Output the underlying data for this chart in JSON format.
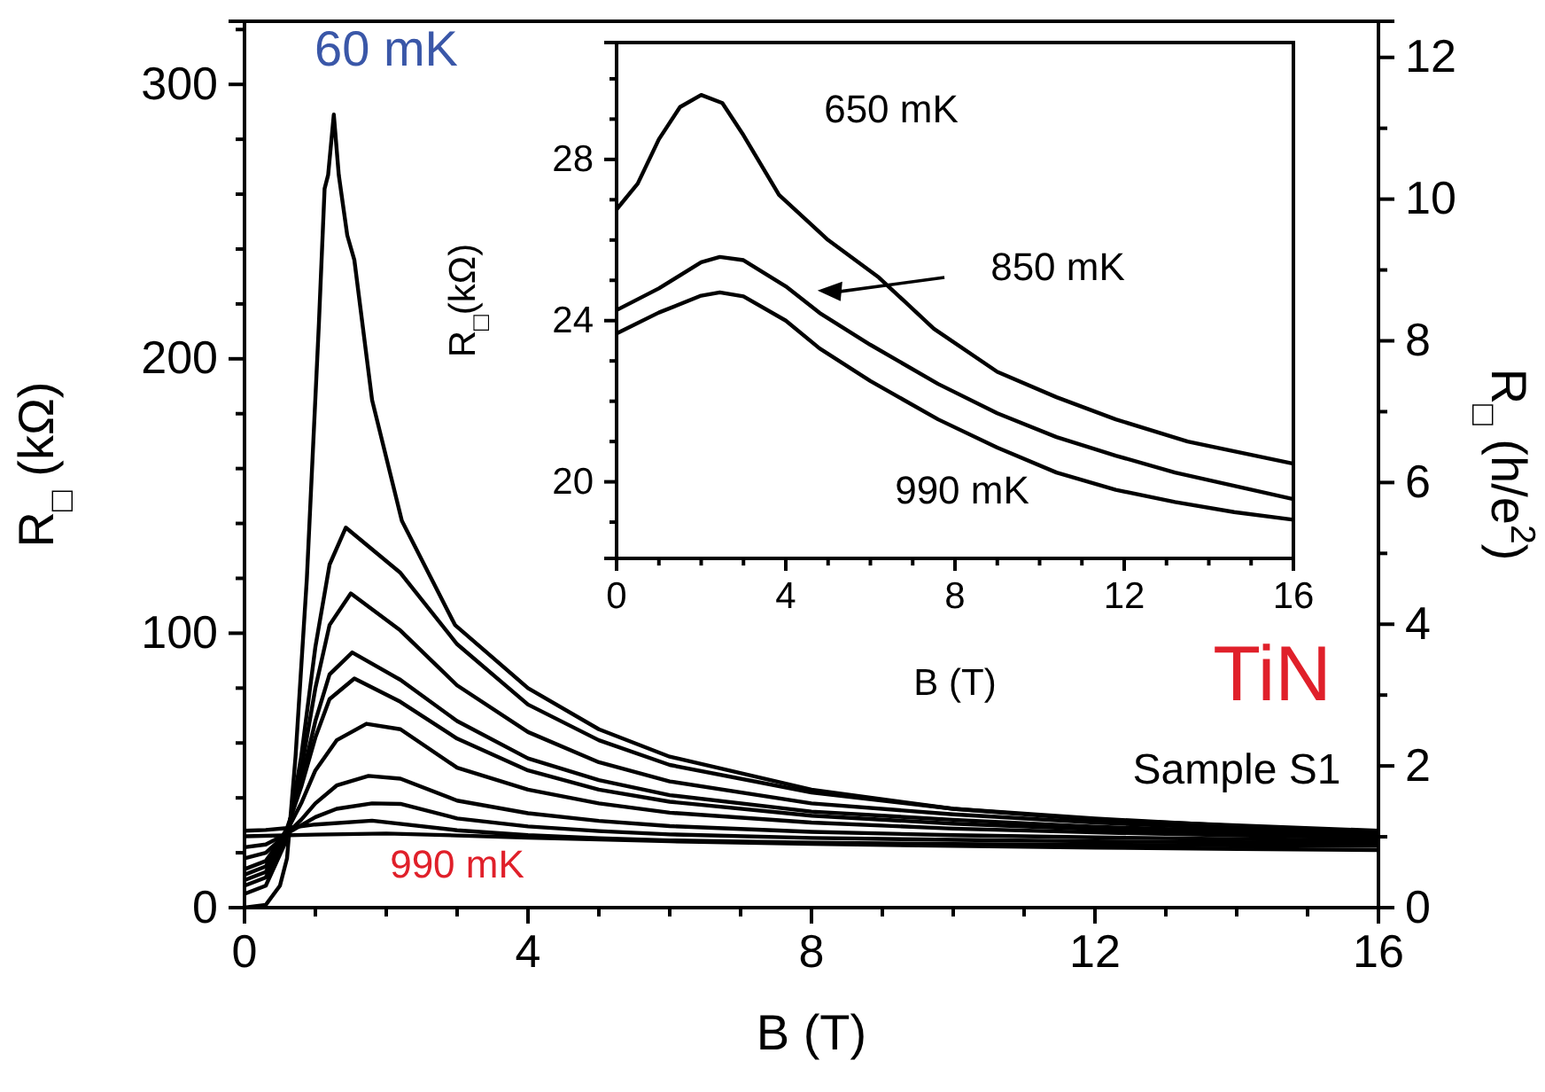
{
  "chart_data": [
    {
      "type": "line",
      "xlabel": "B (T)",
      "ylabel": "R$_{□}$ (kΩ)",
      "y2label": "R$_{□}$ (h/e$^{2}$)",
      "xlim": [
        0,
        16
      ],
      "ylim": [
        0,
        323
      ],
      "y2lim": [
        0,
        12.51
      ],
      "xticks": [
        0,
        {
          "value": 1,
          "label": null
        },
        {
          "value": 2,
          "label": null
        },
        {
          "value": 3,
          "label": null
        },
        4,
        {
          "value": 5,
          "label": null
        },
        {
          "value": 6,
          "label": null
        },
        {
          "value": 7,
          "label": null
        },
        8,
        {
          "value": 9,
          "label": null
        },
        {
          "value": 10,
          "label": null
        },
        {
          "value": 11,
          "label": null
        },
        12,
        {
          "value": 13,
          "label": null
        },
        {
          "value": 14,
          "label": null
        },
        {
          "value": 15,
          "label": null
        },
        16
      ],
      "yticks": [
        0,
        {
          "value": 20,
          "label": null
        },
        {
          "value": 40,
          "label": null
        },
        {
          "value": 60,
          "label": null
        },
        {
          "value": 80,
          "label": null
        },
        100,
        {
          "value": 120,
          "label": null
        },
        {
          "value": 140,
          "label": null
        },
        {
          "value": 160,
          "label": null
        },
        {
          "value": 180,
          "label": null
        },
        200,
        {
          "value": 220,
          "label": null
        },
        {
          "value": 240,
          "label": null
        },
        {
          "value": 260,
          "label": null
        },
        {
          "value": 280,
          "label": null
        },
        300,
        {
          "value": 320,
          "label": null
        }
      ],
      "y2ticks": [
        0,
        {
          "value": 1,
          "label": null
        },
        2,
        {
          "value": 3,
          "label": null
        },
        4,
        {
          "value": 5,
          "label": null
        },
        6,
        {
          "value": 7,
          "label": null
        },
        8,
        {
          "value": 9,
          "label": null
        },
        10,
        {
          "value": 11,
          "label": null
        },
        12
      ],
      "annotations": [
        "60 mK",
        "990 mK",
        "TiN",
        "Sample S1"
      ],
      "series": [
        {
          "color": "#000000",
          "x": [
            0,
            0.3,
            0.5,
            0.6,
            0.72,
            0.88,
            1.05,
            1.13,
            1.18,
            1.26,
            1.33,
            1.45,
            1.55,
            1.8,
            2.22,
            2.97,
            4,
            5,
            6,
            8,
            10,
            12,
            14,
            16
          ],
          "values": [
            0,
            1,
            8,
            18,
            55,
            120,
            213,
            262,
            267,
            289,
            267,
            245,
            236,
            185,
            141,
            103,
            80,
            65,
            55,
            43,
            36,
            32,
            30,
            28
          ]
        },
        {
          "color": "#000000",
          "x": [
            0,
            0.3,
            0.6,
            0.8,
            1.0,
            1.2,
            1.43,
            2.2,
            3,
            4,
            5,
            6,
            8,
            10,
            12,
            14,
            16
          ],
          "values": [
            5,
            8,
            25,
            55,
            95,
            125,
            138.5,
            122,
            96,
            74,
            61,
            52,
            42,
            36,
            32.5,
            29.7,
            27.5
          ]
        },
        {
          "color": "#000000",
          "x": [
            0,
            0.3,
            0.6,
            0.8,
            1.0,
            1.2,
            1.5,
            2.2,
            3,
            4,
            5,
            6,
            8,
            10,
            12,
            14,
            16
          ],
          "values": [
            8,
            11,
            27,
            50,
            80,
            103,
            114.5,
            101,
            81,
            64,
            53,
            46,
            38,
            34,
            31,
            28.8,
            27
          ]
        },
        {
          "color": "#000000",
          "x": [
            0,
            0.3,
            0.6,
            0.8,
            1.0,
            1.2,
            1.52,
            2.2,
            3,
            4,
            5,
            6,
            8,
            10,
            12,
            14,
            16
          ],
          "values": [
            10,
            13,
            28,
            46,
            68,
            85,
            93,
            83,
            68,
            54.4,
            46.5,
            41,
            35,
            32,
            29.5,
            27.8,
            26.5
          ]
        },
        {
          "color": "#000000",
          "x": [
            0,
            0.3,
            0.6,
            0.8,
            1.0,
            1.2,
            1.55,
            2.2,
            3,
            4,
            5,
            6,
            8,
            10,
            12,
            14,
            16
          ],
          "values": [
            12,
            15,
            29,
            44,
            62,
            76,
            83.5,
            75,
            61.6,
            50,
            43,
            38.6,
            33.5,
            30.6,
            28.6,
            27.1,
            26
          ]
        },
        {
          "color": "#000000",
          "x": [
            0,
            0.3,
            0.6,
            0.8,
            1.0,
            1.3,
            1.72,
            2.2,
            3,
            4,
            5,
            6,
            8,
            10,
            12,
            14,
            16
          ],
          "values": [
            14,
            17,
            28,
            38,
            50,
            61,
            67,
            65,
            51,
            43,
            38,
            34.6,
            31,
            28.8,
            27.4,
            26.3,
            25.5
          ]
        },
        {
          "color": "#000000",
          "x": [
            0,
            0.3,
            0.6,
            0.8,
            1.0,
            1.3,
            1.75,
            2.2,
            3,
            4,
            5,
            6,
            8,
            10,
            12,
            14,
            16
          ],
          "values": [
            18,
            20,
            27,
            32,
            38,
            44.5,
            48,
            47,
            39,
            34.4,
            31.6,
            29.7,
            27.6,
            26.4,
            25.6,
            25,
            24.5
          ]
        },
        {
          "color": "#000000",
          "x": [
            0,
            0.3,
            0.6,
            0.8,
            1.0,
            1.3,
            1.8,
            2.2,
            3,
            4,
            5,
            6,
            8,
            10,
            12,
            14,
            16
          ],
          "values": [
            22,
            23,
            27,
            30,
            33,
            36,
            38,
            37.8,
            32.5,
            29.6,
            27.9,
            26.7,
            25.4,
            24.7,
            24.2,
            23.8,
            23.5
          ]
        },
        {
          "color": "#000000",
          "x": [
            0,
            0.3,
            0.6,
            1.0,
            1.8,
            3,
            4,
            5,
            6,
            8,
            10,
            12,
            14,
            16
          ],
          "values": [
            28,
            28.3,
            29,
            30.3,
            31.7,
            28.2,
            26.4,
            25.3,
            24.5,
            23.7,
            23.2,
            22.9,
            22.7,
            22.5
          ]
        },
        {
          "color": "#000000",
          "x": [
            0,
            1.0,
            2,
            3,
            4,
            6,
            8,
            10,
            12,
            14,
            16
          ],
          "values": [
            26,
            26.6,
            27,
            26.3,
            25.5,
            24.2,
            23.2,
            22.5,
            21.9,
            21.4,
            21
          ]
        }
      ]
    },
    {
      "type": "line",
      "xlabel": "B (T)",
      "ylabel": "R$_{□}$(kΩ)",
      "xlim": [
        0,
        16
      ],
      "ylim": [
        18.1,
        30.9
      ],
      "xticks": [
        0,
        {
          "value": 1,
          "label": null
        },
        {
          "value": 2,
          "label": null
        },
        {
          "value": 3,
          "label": null
        },
        4,
        {
          "value": 5,
          "label": null
        },
        {
          "value": 6,
          "label": null
        },
        {
          "value": 7,
          "label": null
        },
        8,
        {
          "value": 9,
          "label": null
        },
        {
          "value": 10,
          "label": null
        },
        {
          "value": 11,
          "label": null
        },
        12,
        {
          "value": 13,
          "label": null
        },
        {
          "value": 14,
          "label": null
        },
        {
          "value": 15,
          "label": null
        },
        16
      ],
      "yticks": [
        {
          "value": 19,
          "label": null
        },
        20,
        {
          "value": 21,
          "label": null
        },
        {
          "value": 22,
          "label": null
        },
        {
          "value": 23,
          "label": null
        },
        24,
        {
          "value": 25,
          "label": null
        },
        {
          "value": 26,
          "label": null
        },
        {
          "value": 27,
          "label": null
        },
        28,
        {
          "value": 29,
          "label": null
        },
        {
          "value": 30,
          "label": null
        }
      ],
      "annotations": [
        "650 mK",
        "850 mK",
        "990 mK"
      ],
      "series": [
        {
          "color": "#000000",
          "x": [
            0,
            0.5,
            1.0,
            1.5,
            2.0,
            2.5,
            3.0,
            3.84,
            5,
            6.2,
            7.5,
            9.0,
            10.4,
            11.8,
            13.5,
            16
          ],
          "values": [
            26.76,
            27.4,
            28.5,
            29.3,
            29.6,
            29.4,
            28.6,
            27.12,
            26.0,
            25.07,
            23.8,
            22.73,
            22.1,
            21.55,
            21.0,
            20.45
          ]
        },
        {
          "color": "#000000",
          "x": [
            0,
            1.0,
            2.0,
            2.44,
            3.0,
            4.0,
            4.8,
            6.0,
            7.6,
            9.0,
            10.4,
            11.8,
            13.2,
            14.6,
            16
          ],
          "values": [
            24.26,
            24.8,
            25.45,
            25.58,
            25.5,
            24.85,
            24.19,
            23.4,
            22.43,
            21.7,
            21.11,
            20.65,
            20.23,
            19.9,
            19.57
          ]
        },
        {
          "color": "#000000",
          "x": [
            0,
            1.0,
            2.0,
            2.44,
            3.0,
            4.0,
            4.8,
            6.0,
            7.6,
            9.0,
            10.4,
            11.8,
            13.2,
            14.6,
            16
          ],
          "values": [
            23.68,
            24.2,
            24.62,
            24.7,
            24.6,
            24.0,
            23.31,
            22.5,
            21.55,
            20.85,
            20.23,
            19.8,
            19.5,
            19.25,
            19.06
          ]
        }
      ]
    }
  ]
}
